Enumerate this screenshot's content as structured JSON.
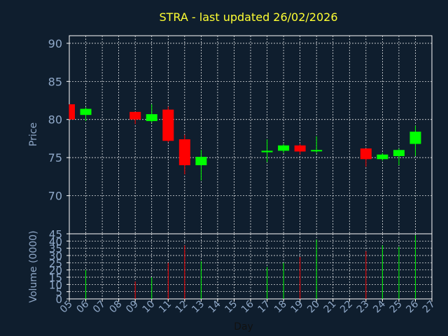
{
  "colors": {
    "background": "#0f1e2e",
    "frame": "#ffffff",
    "grid": "#ffffff",
    "up": "#00ff00",
    "down": "#ff0000",
    "title": "#ffff33",
    "ticks": "#8fa8c8"
  },
  "chart_data": [
    {
      "type": "candlestick",
      "title": "STRA - last updated 26/02/2026",
      "ylabel": "Price",
      "ylim": [
        65,
        91
      ],
      "yticks": [
        70,
        75,
        80,
        85,
        90
      ],
      "xlim": [
        5,
        27
      ],
      "grid": true,
      "candles": [
        {
          "day": 5,
          "open": 82.0,
          "close": 80.0,
          "high": 82.0,
          "low": 80.0
        },
        {
          "day": 6,
          "open": 80.6,
          "close": 81.4,
          "high": 81.6,
          "low": 79.8
        },
        {
          "day": 9,
          "open": 81.0,
          "close": 80.0,
          "high": 81.0,
          "low": 79.4
        },
        {
          "day": 10,
          "open": 79.8,
          "close": 80.7,
          "high": 82.0,
          "low": 79.6
        },
        {
          "day": 11,
          "open": 81.3,
          "close": 77.2,
          "high": 81.7,
          "low": 77.0
        },
        {
          "day": 12,
          "open": 77.4,
          "close": 74.0,
          "high": 78.0,
          "low": 72.8
        },
        {
          "day": 13,
          "open": 74.0,
          "close": 75.1,
          "high": 76.0,
          "low": 72.0
        },
        {
          "day": 17,
          "open": 75.7,
          "close": 75.9,
          "high": 77.4,
          "low": 74.4
        },
        {
          "day": 18,
          "open": 75.9,
          "close": 76.6,
          "high": 76.8,
          "low": 75.6
        },
        {
          "day": 19,
          "open": 76.6,
          "close": 75.8,
          "high": 76.8,
          "low": 75.4
        },
        {
          "day": 20,
          "open": 75.9,
          "close": 76.0,
          "high": 77.8,
          "low": 75.6
        },
        {
          "day": 23,
          "open": 76.2,
          "close": 74.8,
          "high": 76.2,
          "low": 73.8
        },
        {
          "day": 24,
          "open": 74.8,
          "close": 75.4,
          "high": 75.6,
          "low": 74.6
        },
        {
          "day": 25,
          "open": 75.2,
          "close": 76.0,
          "high": 76.2,
          "low": 74.0
        },
        {
          "day": 26,
          "open": 76.8,
          "close": 78.4,
          "high": 79.2,
          "low": 75.2
        }
      ]
    },
    {
      "type": "bar",
      "ylabel": "Volume (0000)",
      "ylim": [
        0,
        45
      ],
      "yticks": [
        0,
        5,
        10,
        15,
        20,
        25,
        30,
        35,
        40,
        45
      ],
      "xlabel": "Day",
      "xlim": [
        5,
        27
      ],
      "xticks": [
        "05",
        "06",
        "07",
        "08",
        "09",
        "10",
        "11",
        "12",
        "13",
        "14",
        "15",
        "16",
        "17",
        "18",
        "19",
        "20",
        "21",
        "22",
        "23",
        "24",
        "25",
        "26",
        "27"
      ],
      "grid": true,
      "bars": [
        {
          "day": 6,
          "value": 20,
          "direction": "up"
        },
        {
          "day": 9,
          "value": 12,
          "direction": "down"
        },
        {
          "day": 10,
          "value": 15,
          "direction": "up"
        },
        {
          "day": 11,
          "value": 25,
          "direction": "down"
        },
        {
          "day": 12,
          "value": 37,
          "direction": "down"
        },
        {
          "day": 13,
          "value": 26,
          "direction": "up"
        },
        {
          "day": 17,
          "value": 22,
          "direction": "up"
        },
        {
          "day": 18,
          "value": 25,
          "direction": "up"
        },
        {
          "day": 19,
          "value": 29,
          "direction": "down"
        },
        {
          "day": 20,
          "value": 41,
          "direction": "up"
        },
        {
          "day": 23,
          "value": 33,
          "direction": "down"
        },
        {
          "day": 24,
          "value": 37,
          "direction": "up"
        },
        {
          "day": 25,
          "value": 36,
          "direction": "up"
        },
        {
          "day": 26,
          "value": 44,
          "direction": "up"
        }
      ]
    }
  ]
}
